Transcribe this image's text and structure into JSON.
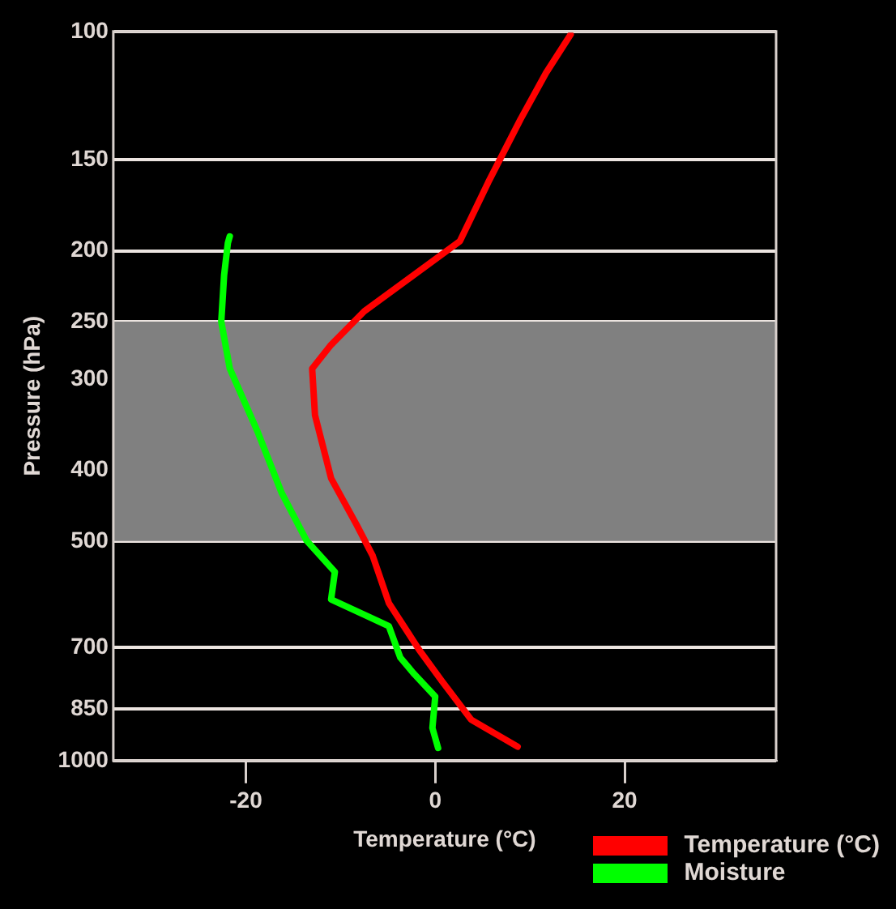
{
  "chart_data": {
    "type": "line",
    "xlabel": "Temperature (°C)",
    "ylabel": "Pressure (hPa)",
    "xlim": [
      -34,
      36
    ],
    "xticks": [
      -20,
      0,
      20
    ],
    "ylim": [
      1000,
      100
    ],
    "yticks": [
      100,
      150,
      200,
      250,
      300,
      400,
      500,
      700,
      850,
      1000
    ],
    "log": "y",
    "grid": "y",
    "legend": "bottom right",
    "marker": "none",
    "line_style": "solid",
    "bands": [
      {
        "axis": "y",
        "from": 250,
        "to": 500,
        "color": "#808080"
      }
    ],
    "series": [
      {
        "name": "Temperature (°C)",
        "color": "#ff0000",
        "x": [
          8.7,
          3.8,
          0.7,
          -1.7,
          -4.9,
          -6.6,
          -8.3,
          -11,
          -12.7,
          -13,
          -11,
          -7.5,
          -2.3,
          2.6,
          5.6,
          9.0,
          11.7,
          14.3
        ],
        "values": [
          957,
          879,
          778,
          705,
          608,
          524,
          475,
          410,
          336,
          290,
          269,
          242,
          216,
          194,
          161,
          132,
          114,
          101
        ]
      },
      {
        "name": "Moisture",
        "color": "#00ff00",
        "x": [
          0.3,
          -0.3,
          0,
          -2.3,
          -3.7,
          -4.9,
          -11,
          -10.6,
          -13.6,
          -16.2,
          -18.8,
          -21.7,
          -22.6,
          -22.3,
          -21.9,
          -21.7
        ],
        "values": [
          961,
          902,
          817,
          759,
          722,
          654,
          601,
          551,
          499,
          430,
          353,
          290,
          250,
          216,
          195,
          191
        ]
      }
    ]
  }
}
